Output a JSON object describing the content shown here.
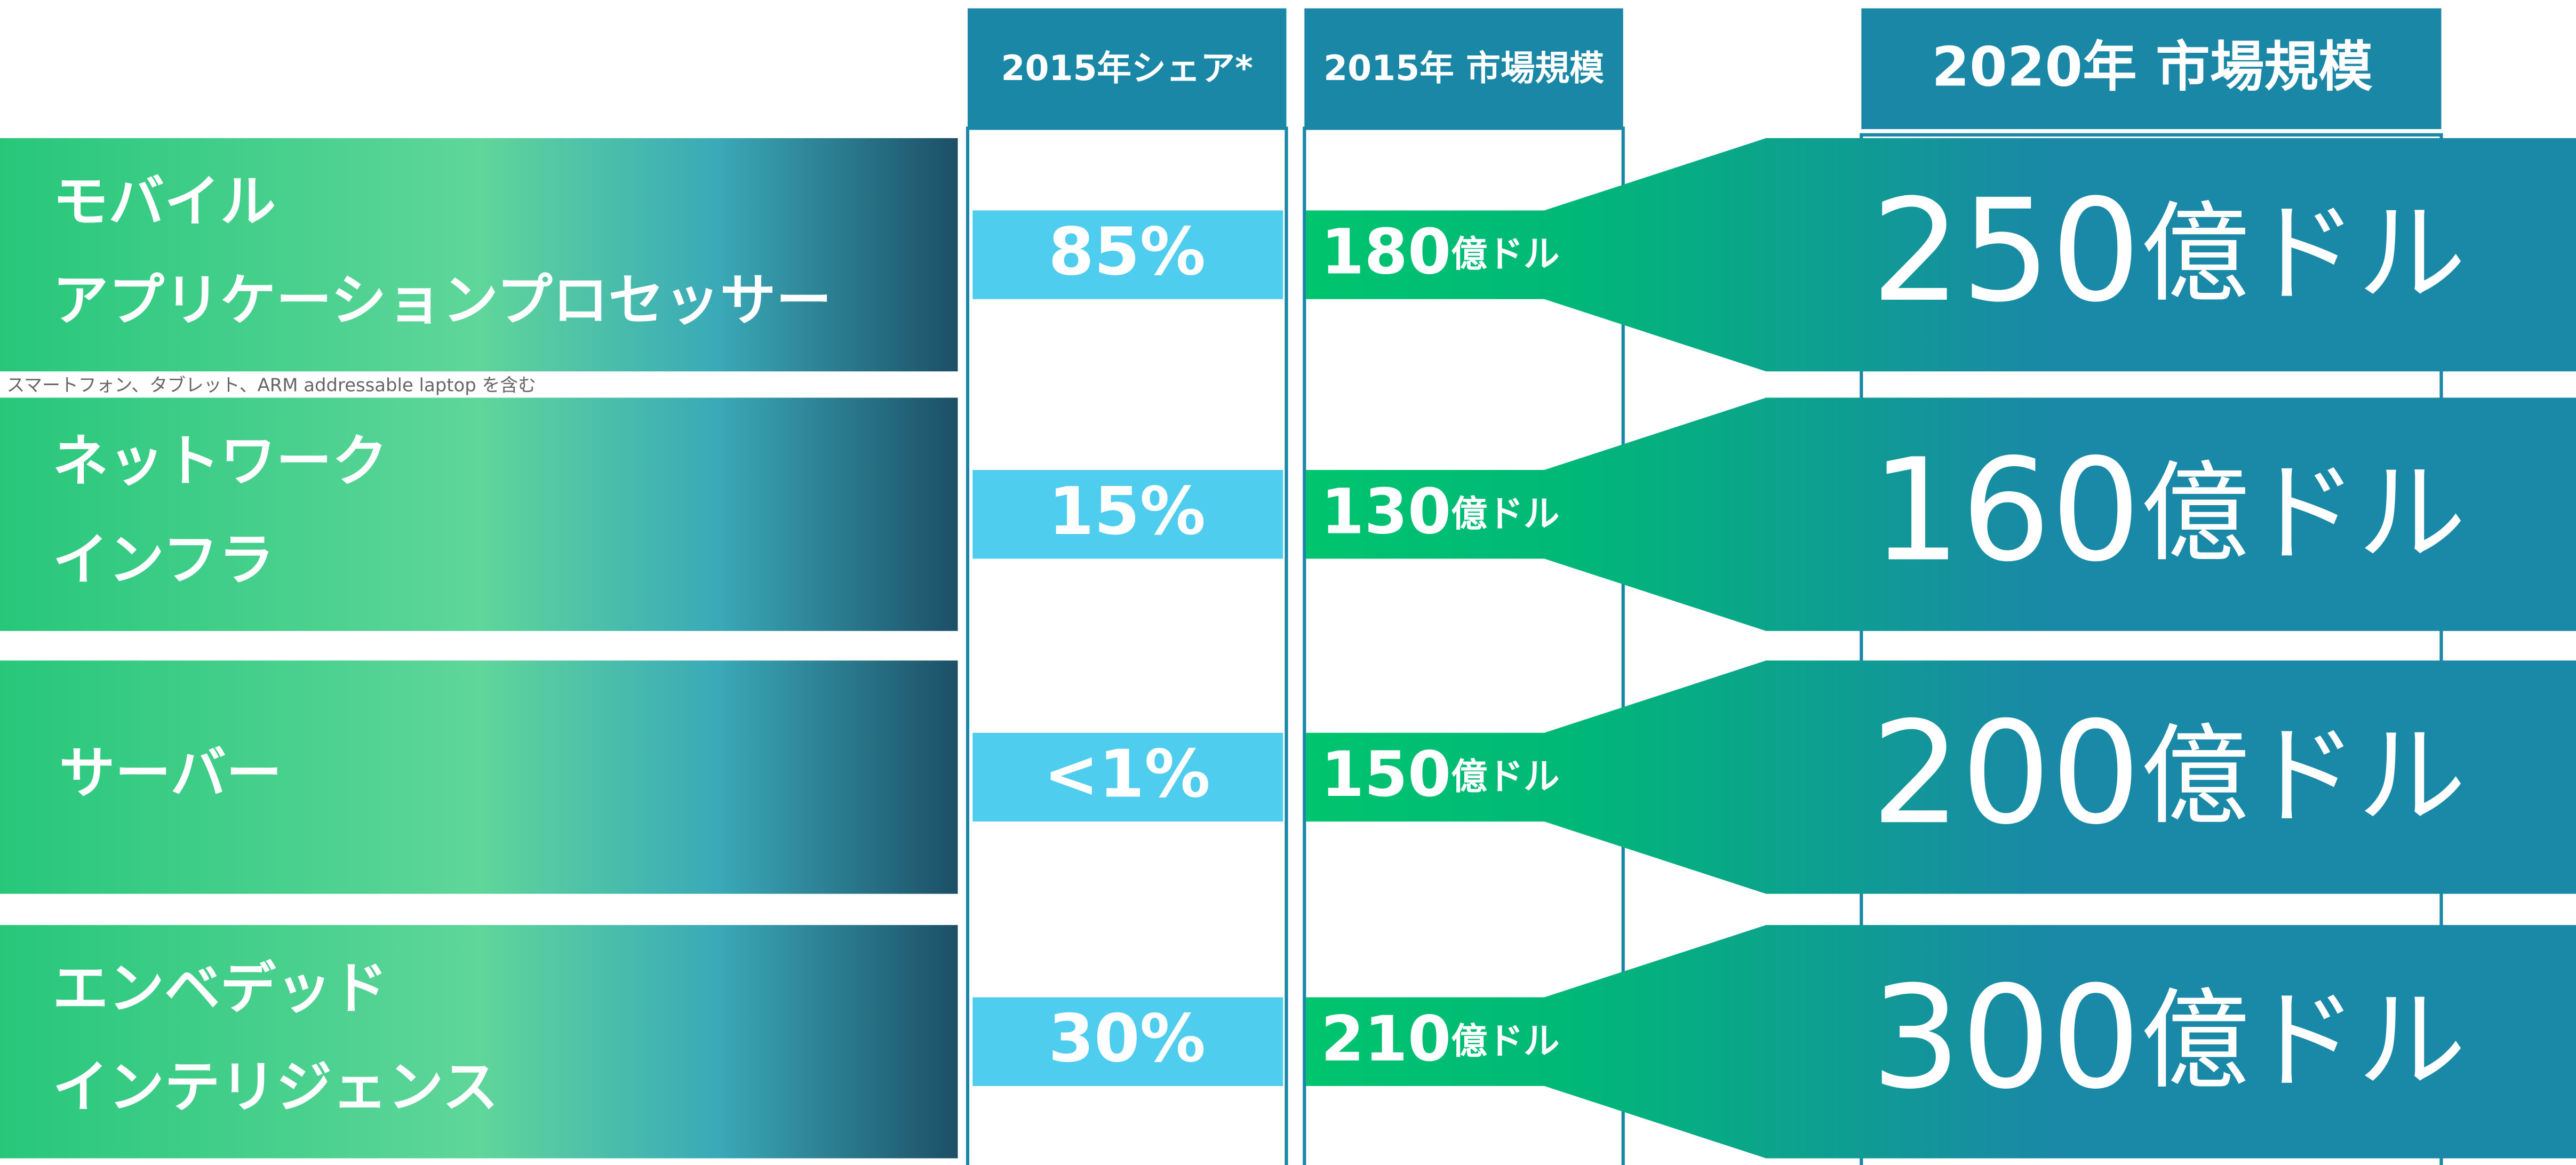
{
  "columns": {
    "share": "2015年シェア*",
    "market_2015": "2015年 市場規模",
    "market_2020": "2020年 市場規模"
  },
  "rows": [
    {
      "label_lines": [
        "モバイル",
        "アプリケーションプロセッサー"
      ],
      "note": "スマートフォン、タブレット、ARM addressable laptop を含む",
      "share": "85%",
      "market_2015": {
        "amount": 180,
        "unit": "億ドル"
      },
      "market_2020": {
        "amount": 250,
        "unit": "億ドル"
      }
    },
    {
      "label_lines": [
        "ネットワーク",
        "インフラ"
      ],
      "share": "15%",
      "market_2015": {
        "amount": 130,
        "unit": "億ドル"
      },
      "market_2020": {
        "amount": 160,
        "unit": "億ドル"
      }
    },
    {
      "label_lines": [
        "サーバー"
      ],
      "share": "<1%",
      "market_2015": {
        "amount": 150,
        "unit": "億ドル"
      },
      "market_2020": {
        "amount": 200,
        "unit": "億ドル"
      }
    },
    {
      "label_lines": [
        "エンベデッド",
        "インテリジェンス"
      ],
      "share": "30%",
      "market_2015": {
        "amount": 210,
        "unit": "億ドル"
      },
      "market_2020": {
        "amount": 300,
        "unit": "億ドル"
      }
    }
  ]
}
